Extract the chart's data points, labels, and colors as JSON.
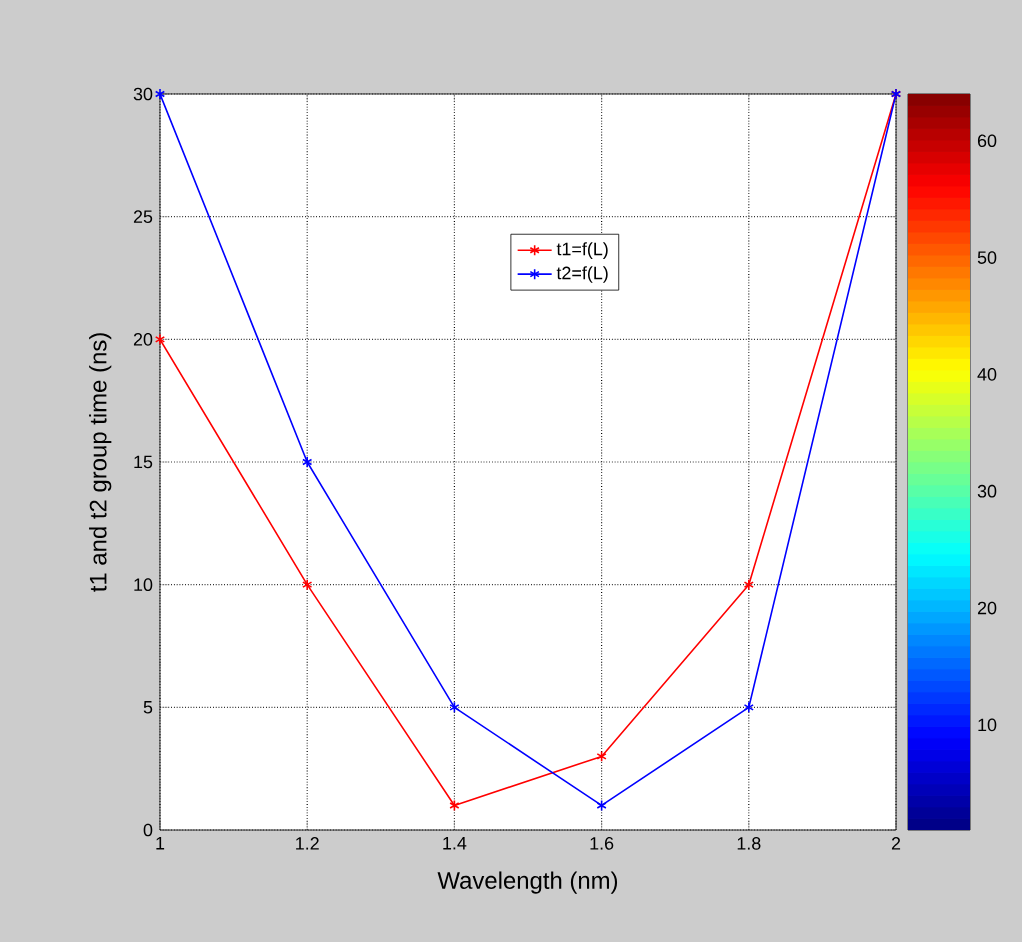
{
  "chart_data": {
    "type": "line",
    "xlabel": "Wavelength (nm)",
    "ylabel": "t1 and t2   group time (ns)",
    "x": [
      1,
      1.2,
      1.4,
      1.6,
      1.8,
      2
    ],
    "series": [
      {
        "name": "t1=f(L)",
        "color": "#ff0000",
        "values": [
          20,
          10,
          1,
          3,
          10,
          30
        ]
      },
      {
        "name": "t2=f(L)",
        "color": "#0000ff",
        "values": [
          30,
          15,
          5,
          1,
          5,
          30
        ]
      }
    ],
    "xlim": [
      1,
      2
    ],
    "xticks": [
      1,
      1.2,
      1.4,
      1.6,
      1.8,
      2
    ],
    "ylim": [
      0,
      30
    ],
    "yticks": [
      0,
      5,
      10,
      15,
      20,
      25,
      30
    ],
    "clim": [
      1,
      64
    ],
    "cticks": [
      10,
      20,
      30,
      40,
      50,
      60
    ],
    "grid": true,
    "legend": "top",
    "marker": "cross",
    "line_style": "solid"
  }
}
